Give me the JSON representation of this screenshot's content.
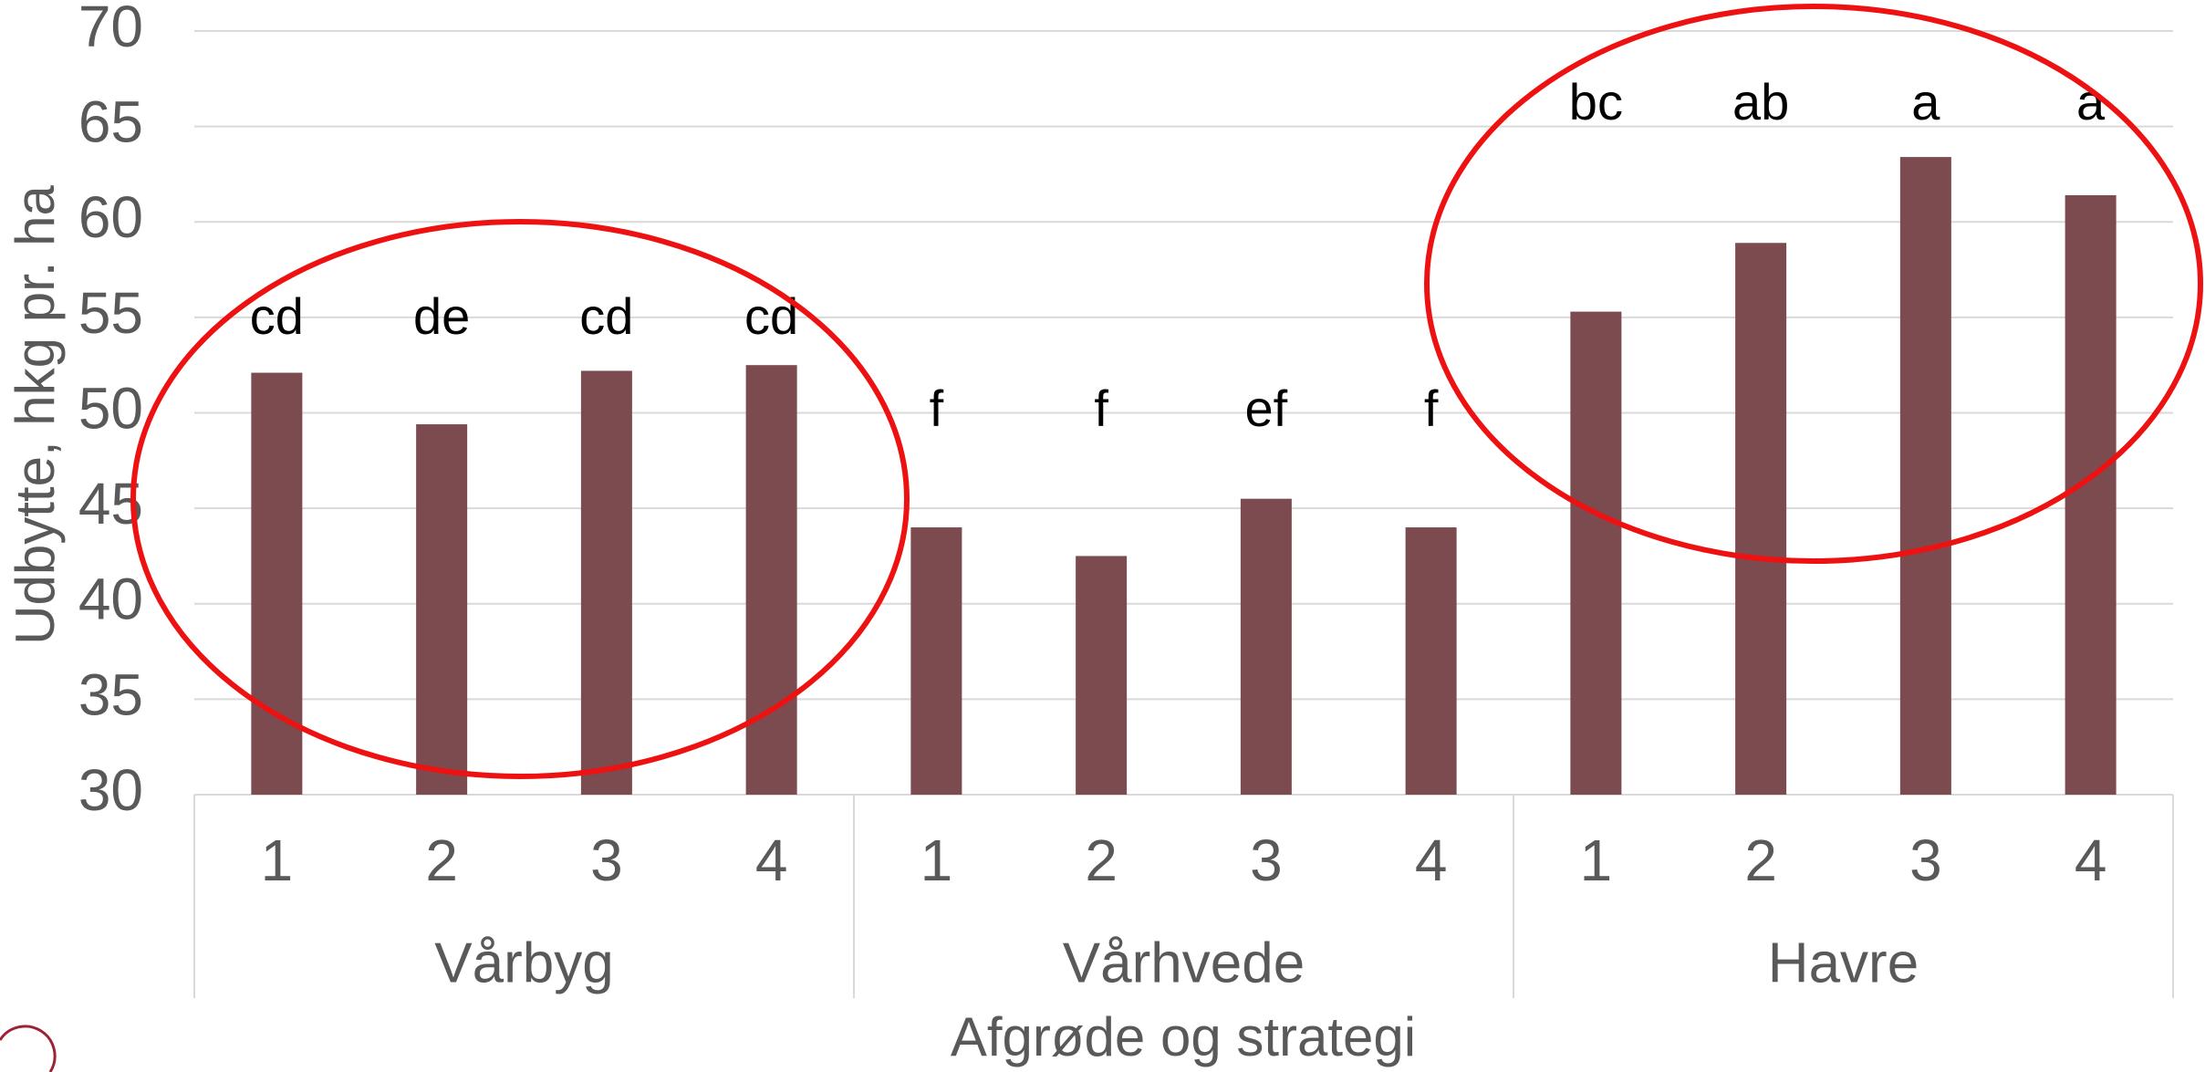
{
  "chart_data": {
    "type": "bar",
    "y_label": "Udbytte, hkg pr. ha",
    "x_label": "Afgrøde og strategi",
    "color": "#7b4b50",
    "ylim": [
      30,
      70
    ],
    "yticks": [
      30,
      35,
      40,
      45,
      50,
      55,
      60,
      65,
      70
    ],
    "grid": true,
    "groups": [
      {
        "name": "Vårbyg",
        "categories": [
          "1",
          "2",
          "3",
          "4"
        ],
        "values": [
          52.1,
          49.4,
          52.2,
          52.5
        ],
        "letters": [
          "cd",
          "de",
          "cd",
          "cd"
        ]
      },
      {
        "name": "Vårhvede",
        "categories": [
          "1",
          "2",
          "3",
          "4"
        ],
        "values": [
          44.0,
          42.5,
          45.5,
          44.0
        ],
        "letters": [
          "f",
          "f",
          "ef",
          "f"
        ]
      },
      {
        "name": "Havre",
        "categories": [
          "1",
          "2",
          "3",
          "4"
        ],
        "values": [
          55.3,
          58.9,
          63.4,
          61.4
        ],
        "letters": [
          "bc",
          "ab",
          "a",
          "a"
        ]
      }
    ]
  }
}
